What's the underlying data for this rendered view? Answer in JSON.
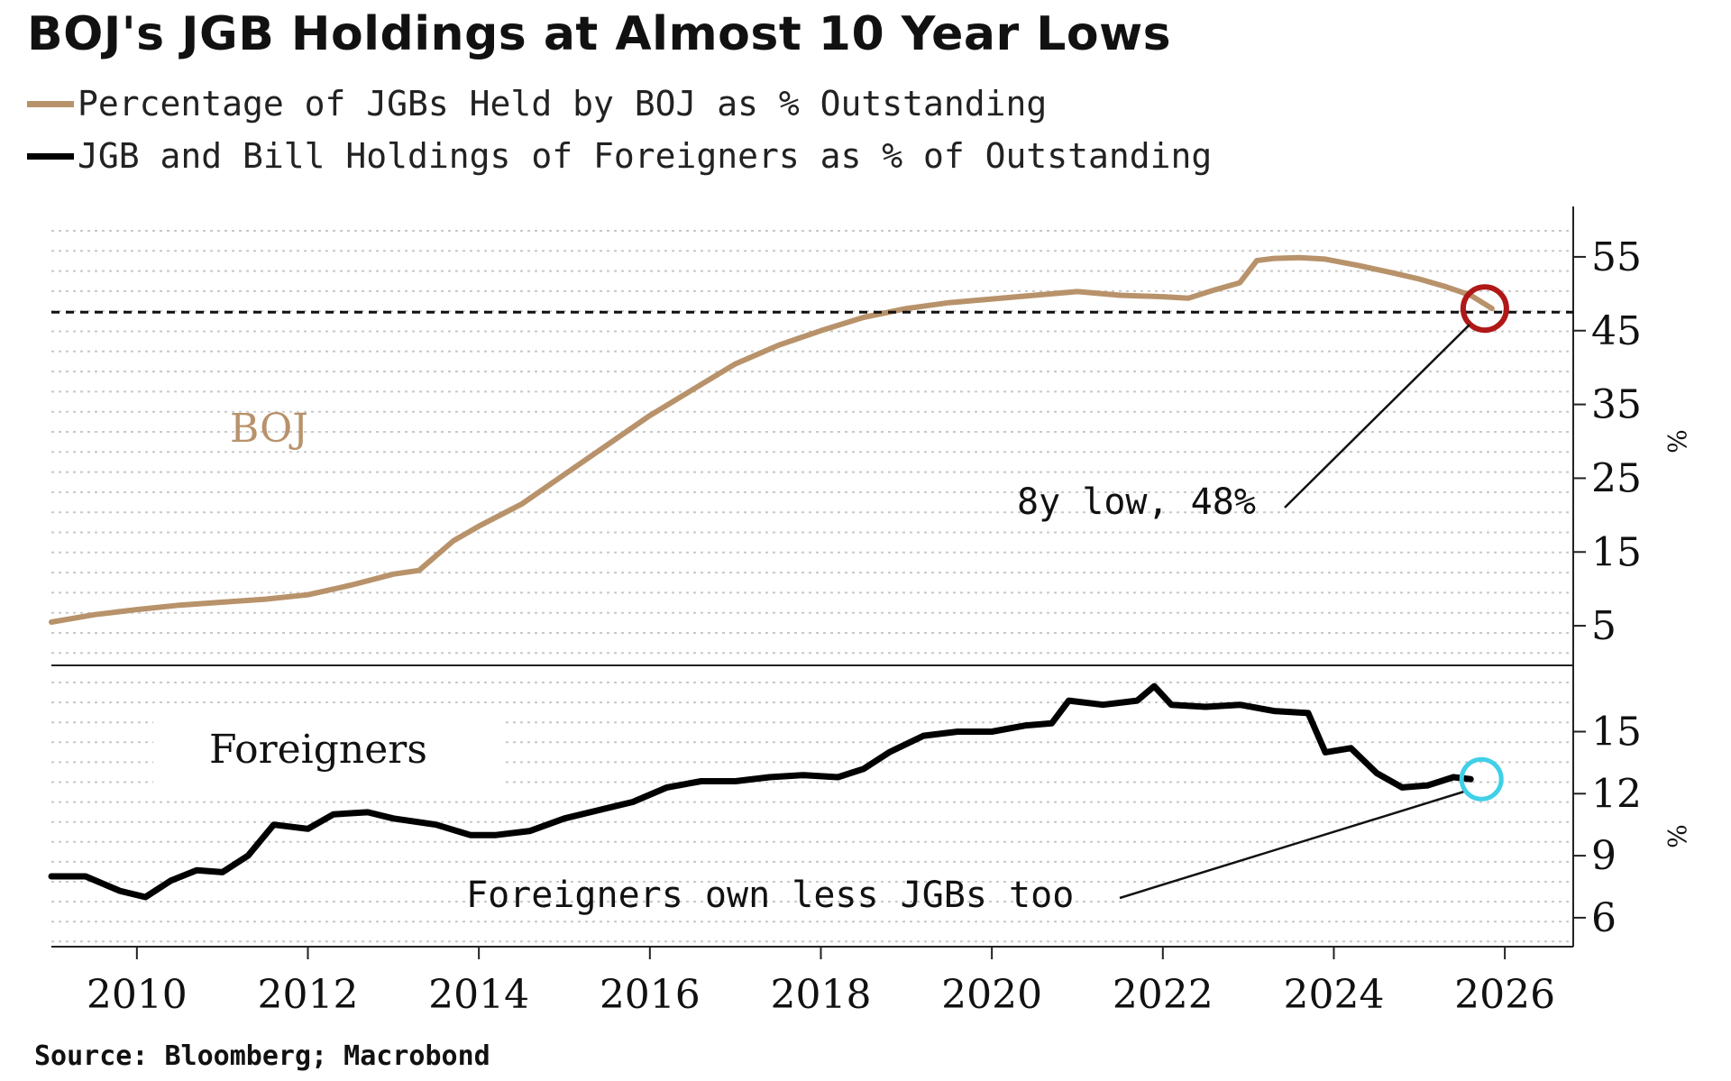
{
  "title": "BOJ's JGB Holdings at Almost 10 Year Lows",
  "source": "Source: Bloomberg; Macrobond",
  "colors": {
    "boj": "#b8926a",
    "foreigners": "#000000",
    "boj_marker": "#b01818",
    "foreigners_marker": "#3fd0e8",
    "grid": "#c8c8c8"
  },
  "legend": [
    {
      "label": "Percentage of JGBs Held by BOJ as % Outstanding",
      "color": "#b8926a"
    },
    {
      "label": "JGB and Bill Holdings of Foreigners as % of Outstanding",
      "color": "#000000"
    }
  ],
  "chart_data": [
    {
      "type": "line",
      "panel_label": "BOJ",
      "unit_label": "%",
      "ylim": [
        0,
        60
      ],
      "yticks": [
        5,
        15,
        25,
        35,
        45,
        55
      ],
      "xlim": [
        2009.0,
        2026.8
      ],
      "reference_line": 47.5,
      "annotation": {
        "text": "8y low, 48%",
        "x": 2025.85,
        "y": 48
      },
      "series": [
        {
          "x": [
            2009.0,
            2009.5,
            2010.0,
            2010.5,
            2011.0,
            2011.5,
            2012.0,
            2012.5,
            2013.0,
            2013.3,
            2013.7,
            2014.0,
            2014.5,
            2015.0,
            2015.5,
            2016.0,
            2016.5,
            2017.0,
            2017.5,
            2018.0,
            2018.5,
            2019.0,
            2019.5,
            2020.0,
            2020.5,
            2021.0,
            2021.5,
            2022.0,
            2022.3,
            2022.6,
            2022.9,
            2023.1,
            2023.3,
            2023.6,
            2023.9,
            2024.3,
            2024.7,
            2025.0,
            2025.3,
            2025.6,
            2025.85
          ],
          "values": [
            5.5,
            6.5,
            7.2,
            7.8,
            8.2,
            8.6,
            9.2,
            10.5,
            12.0,
            12.5,
            16.5,
            18.5,
            21.5,
            25.5,
            29.5,
            33.5,
            37.0,
            40.5,
            43.0,
            45.0,
            46.8,
            48.0,
            48.8,
            49.3,
            49.8,
            50.3,
            49.8,
            49.6,
            49.4,
            50.5,
            51.5,
            54.5,
            54.8,
            54.9,
            54.7,
            53.8,
            52.8,
            52.0,
            51.0,
            49.8,
            48.0
          ]
        }
      ]
    },
    {
      "type": "line",
      "panel_label": "Foreigners",
      "unit_label": "%",
      "ylim": [
        4.6,
        17.9
      ],
      "yticks": [
        6,
        9,
        12,
        15
      ],
      "xlim": [
        2009.0,
        2026.8
      ],
      "xticks": [
        "2010",
        "2012",
        "2014",
        "2016",
        "2018",
        "2020",
        "2022",
        "2024",
        "2026"
      ],
      "annotation": {
        "text": "Foreigners own less JGBs too",
        "x": 2025.6,
        "y": 12.7
      },
      "series": [
        {
          "x": [
            2009.0,
            2009.4,
            2009.8,
            2010.1,
            2010.4,
            2010.7,
            2011.0,
            2011.3,
            2011.6,
            2012.0,
            2012.3,
            2012.7,
            2013.0,
            2013.5,
            2013.9,
            2014.2,
            2014.6,
            2015.0,
            2015.4,
            2015.8,
            2016.2,
            2016.6,
            2017.0,
            2017.4,
            2017.8,
            2018.2,
            2018.5,
            2018.8,
            2019.2,
            2019.6,
            2020.0,
            2020.4,
            2020.7,
            2020.9,
            2021.3,
            2021.7,
            2021.9,
            2022.1,
            2022.5,
            2022.9,
            2023.3,
            2023.7,
            2023.9,
            2024.2,
            2024.5,
            2024.8,
            2025.1,
            2025.4,
            2025.6
          ],
          "values": [
            8.0,
            8.0,
            7.3,
            7.0,
            7.8,
            8.3,
            8.2,
            9.0,
            10.5,
            10.3,
            11.0,
            11.1,
            10.8,
            10.5,
            10.0,
            10.0,
            10.2,
            10.8,
            11.2,
            11.6,
            12.3,
            12.6,
            12.6,
            12.8,
            12.9,
            12.8,
            13.2,
            14.0,
            14.8,
            15.0,
            15.0,
            15.3,
            15.4,
            16.5,
            16.3,
            16.5,
            17.2,
            16.3,
            16.2,
            16.3,
            16.0,
            15.9,
            14.0,
            14.2,
            13.0,
            12.3,
            12.4,
            12.8,
            12.7
          ]
        }
      ]
    }
  ]
}
